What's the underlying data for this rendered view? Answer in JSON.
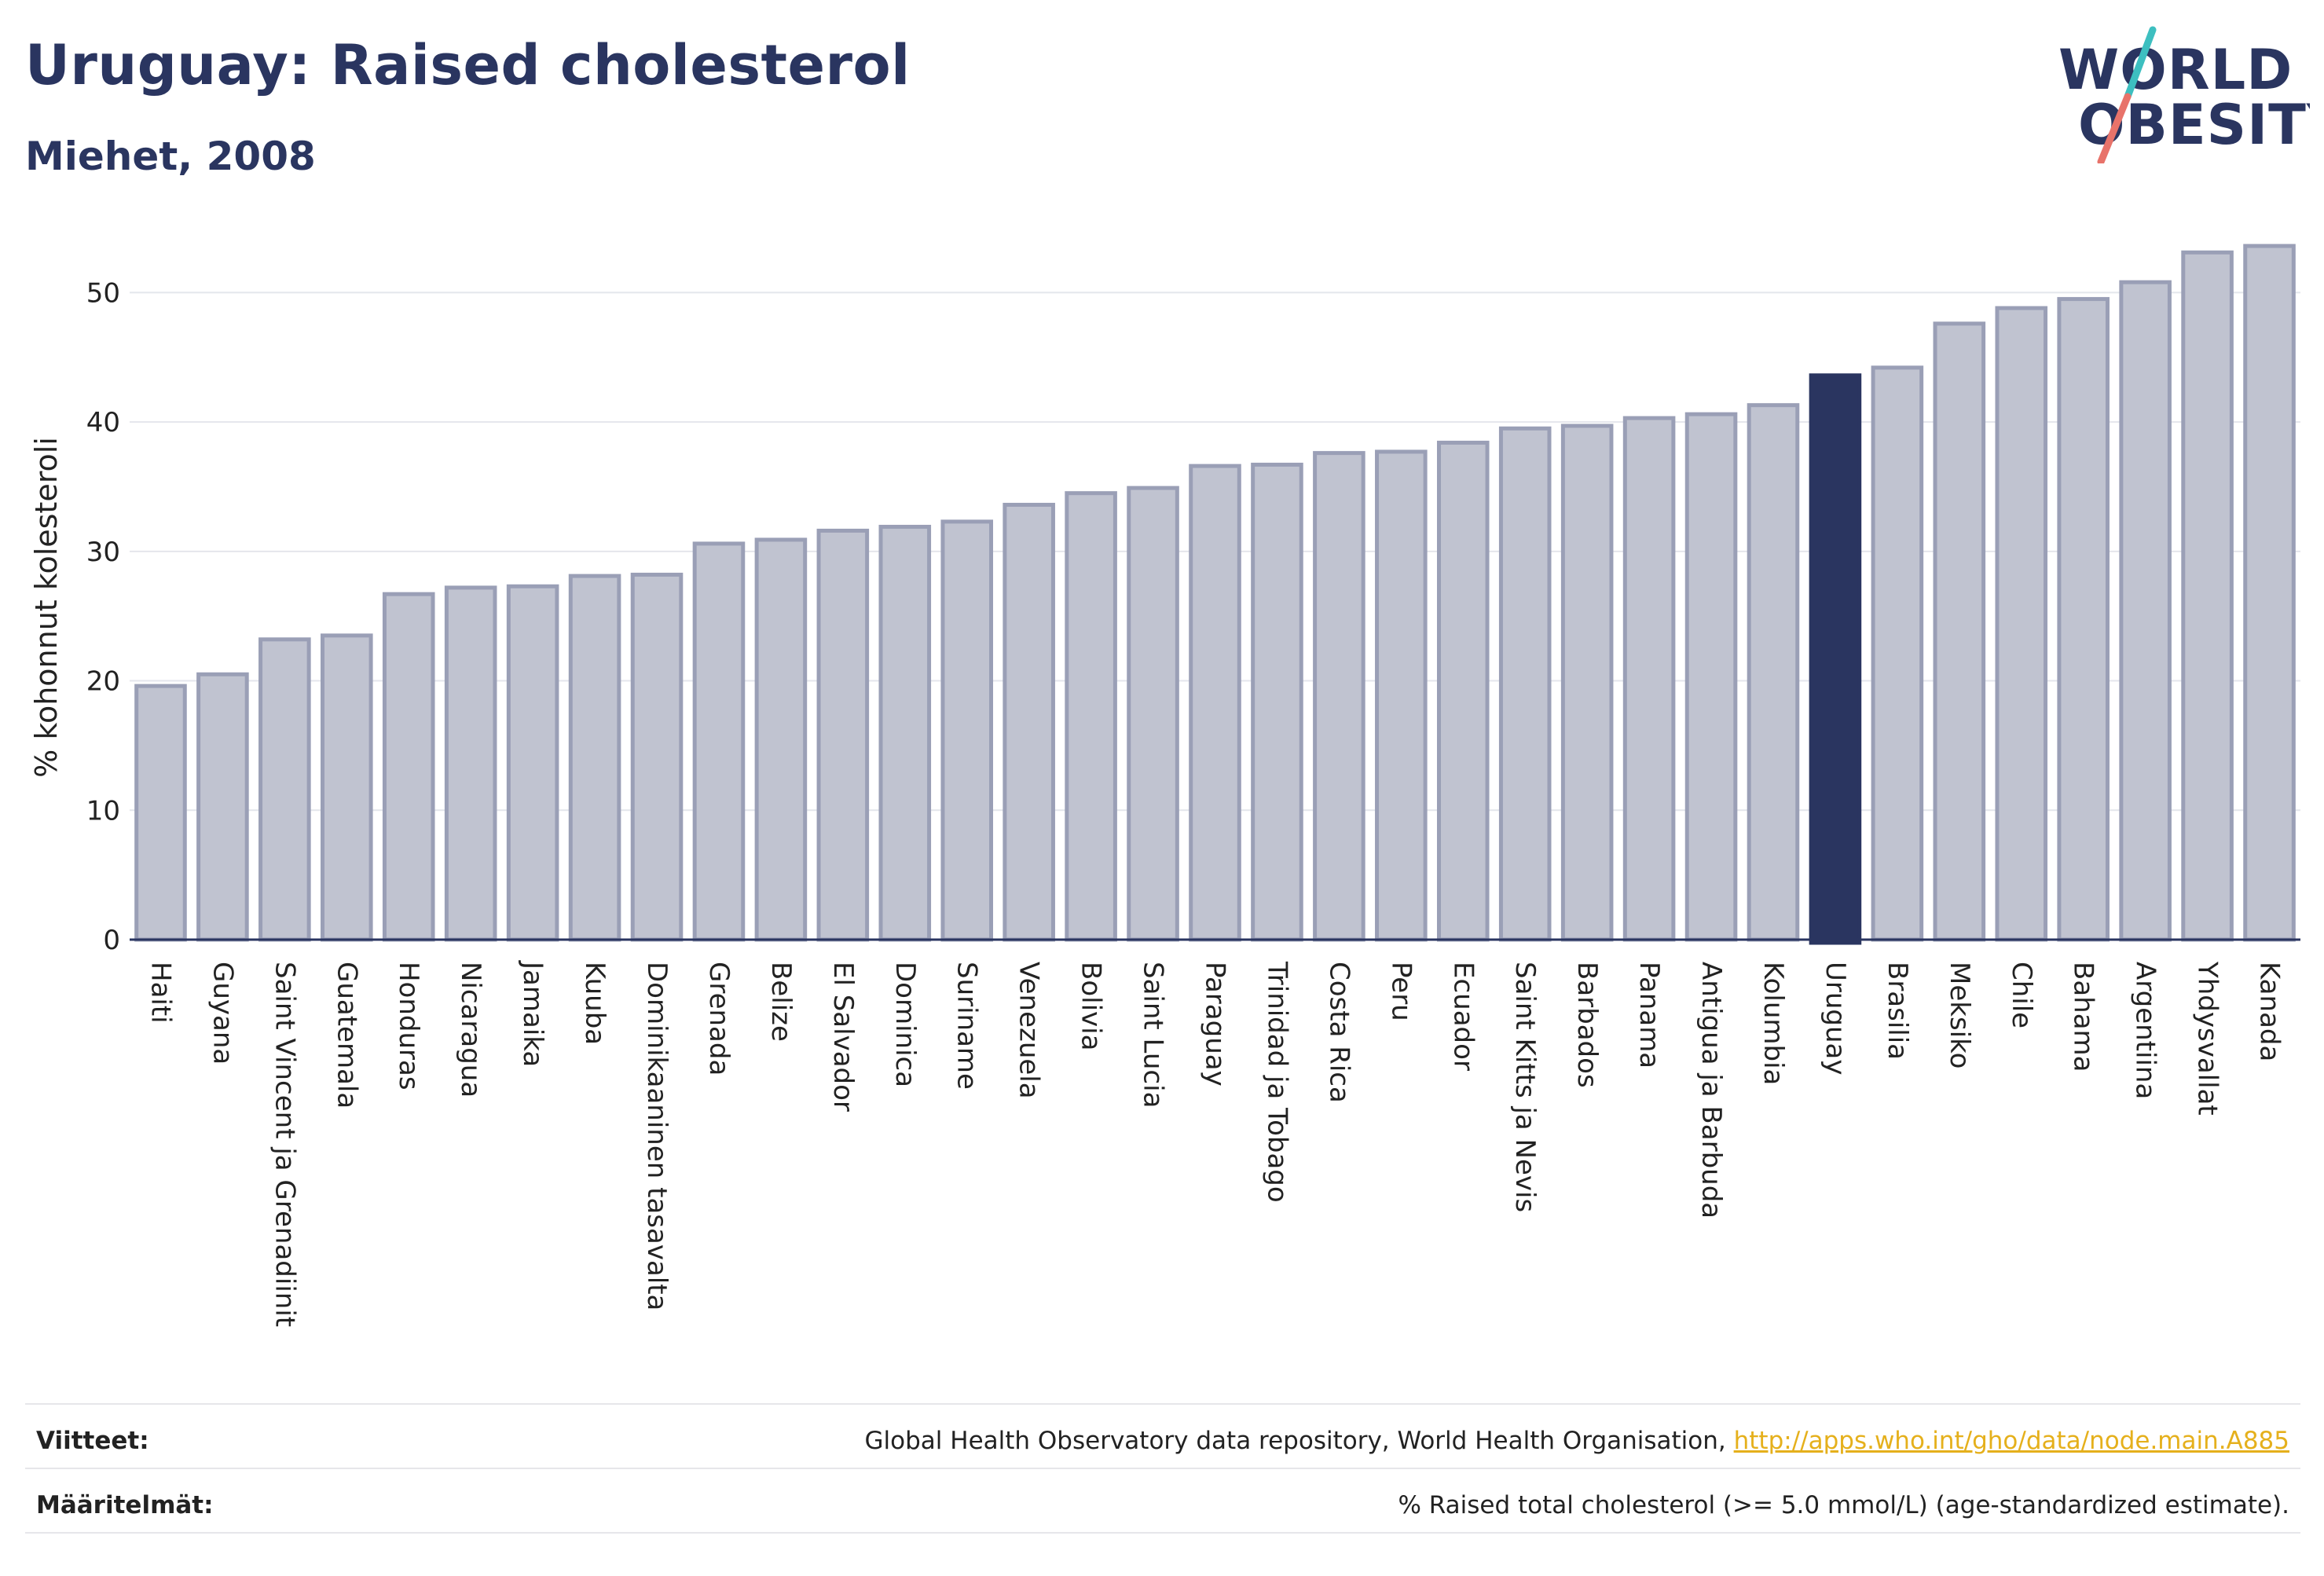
{
  "title": "Uruguay: Raised cholesterol",
  "subtitle": "Miehet, 2008",
  "logo": {
    "line1": "WORLD",
    "line2": "OBESITY",
    "accent_colors": [
      "#3dbfc0",
      "#e8736a"
    ]
  },
  "chart_data": {
    "type": "bar",
    "ylabel": "% kohonnut kolesteroli",
    "ylim": [
      0,
      55
    ],
    "yticks": [
      0,
      10,
      20,
      30,
      40,
      50
    ],
    "grid": true,
    "highlight": "Uruguay",
    "colors": {
      "bar": "#c0c3d0",
      "bar_border": "#9a9fb6",
      "highlight": "#2a3560"
    },
    "categories": [
      "Haiti",
      "Guyana",
      "Saint Vincent ja Grenadiinit",
      "Guatemala",
      "Honduras",
      "Nicaragua",
      "Jamaika",
      "Kuuba",
      "Dominikaaninen tasavalta",
      "Grenada",
      "Belize",
      "El Salvador",
      "Dominica",
      "Suriname",
      "Venezuela",
      "Bolivia",
      "Saint Lucia",
      "Paraguay",
      "Trinidad ja Tobago",
      "Costa Rica",
      "Peru",
      "Ecuador",
      "Saint Kitts ja Nevis",
      "Barbados",
      "Panama",
      "Antigua ja Barbuda",
      "Kolumbia",
      "Uruguay",
      "Brasilia",
      "Meksiko",
      "Chile",
      "Bahama",
      "Argentiina",
      "Yhdysvallat",
      "Kanada"
    ],
    "values": [
      19.6,
      20.5,
      23.2,
      23.5,
      26.7,
      27.2,
      27.3,
      28.1,
      28.2,
      30.6,
      30.9,
      31.6,
      31.9,
      32.3,
      33.6,
      34.5,
      34.9,
      36.6,
      36.7,
      37.6,
      37.7,
      38.4,
      39.5,
      39.7,
      40.3,
      40.6,
      41.3,
      43.6,
      44.2,
      47.6,
      48.8,
      49.5,
      50.8,
      53.1,
      53.6
    ]
  },
  "footer": {
    "sources_label": "Viitteet:",
    "sources_text": "Global Health Observatory data repository, World Health Organisation, ",
    "sources_link": "http://apps.who.int/gho/data/node.main.A885",
    "definitions_label": "Määritelmät:",
    "definitions_text": "% Raised total cholesterol (>= 5.0 mmol/L) (age-standardized estimate)."
  }
}
